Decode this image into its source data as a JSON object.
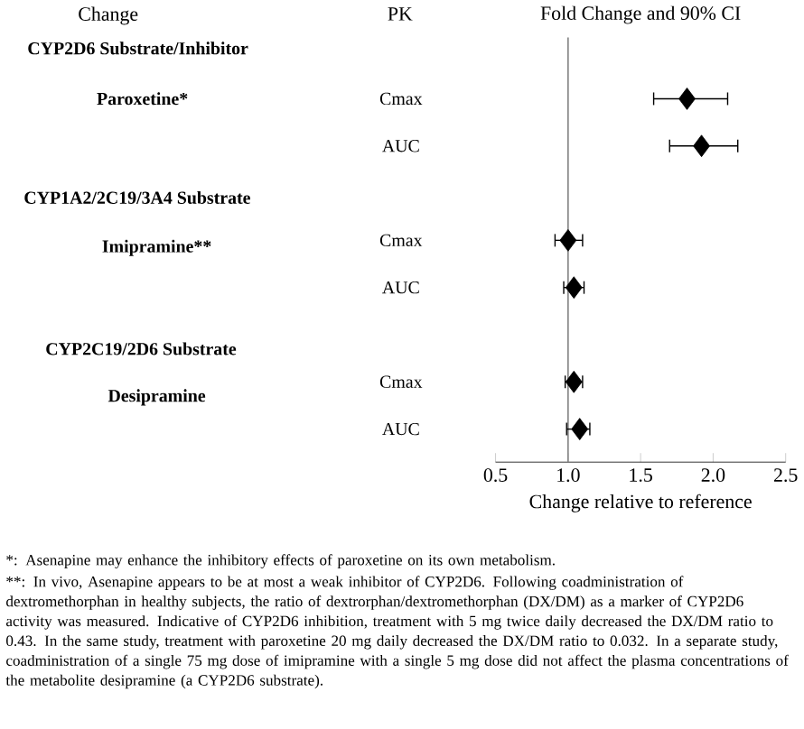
{
  "chart_data": {
    "type": "scatter",
    "orientation": "horizontal",
    "title": "Fold Change and 90% CI",
    "xlabel": "Change relative to reference",
    "ylabel": "PK",
    "categories": [
      "Cmax",
      "AUC",
      "Cmax",
      "AUC",
      "Cmax",
      "AUC"
    ],
    "values": [
      1.82,
      1.92,
      1.0,
      1.04,
      1.04,
      1.08
    ],
    "errors": [
      [
        1.59,
        2.1
      ],
      [
        1.7,
        2.17
      ],
      [
        0.91,
        1.1
      ],
      [
        0.97,
        1.11
      ],
      [
        0.98,
        1.1
      ],
      [
        0.99,
        1.15
      ]
    ],
    "color": "#000000",
    "marker": "diamond",
    "xlim": [
      0.5,
      2.5
    ],
    "xticks": [
      0.5,
      {
        "value": 1.0,
        "label": "1.0"
      },
      1.5,
      {
        "value": 2.0,
        "label": "2.0"
      },
      2.5
    ],
    "ref_lines": [
      {
        "axis": "x",
        "value": 1.0,
        "color": "#808080"
      }
    ],
    "annotations": [
      "Change",
      "CYP2D6 Substrate/Inhibitor",
      "Paroxetine*",
      "CYP1A2/2C19/3A4 Substrate",
      "Imipramine**",
      "CYP2C19/2D6 Substrate",
      "Desipramine",
      "*: Asenapine may enhance the inhibitory effects of paroxetine on its own metabolism.",
      "**: In vivo, Asenapine appears to be at most a weak inhibitor of CYP2D6. Following coadministration of dextromethorphan in healthy subjects, the ratio of dextrorphan/dextromethorphan (DX/DM) as a marker of CYP2D6 activity was measured. Indicative of CYP2D6 inhibition, treatment with 5 mg twice daily decreased the DX/DM ratio to 0.43. In the same study, treatment with paroxetine 20 mg daily decreased the DX/DM ratio to 0.032. In a separate study, coadministration of a single 75 mg dose of imipramine with a single 5 mg dose did not affect the plasma concentrations of the metabolite desipramine (a CYP2D6 substrate)."
    ]
  }
}
